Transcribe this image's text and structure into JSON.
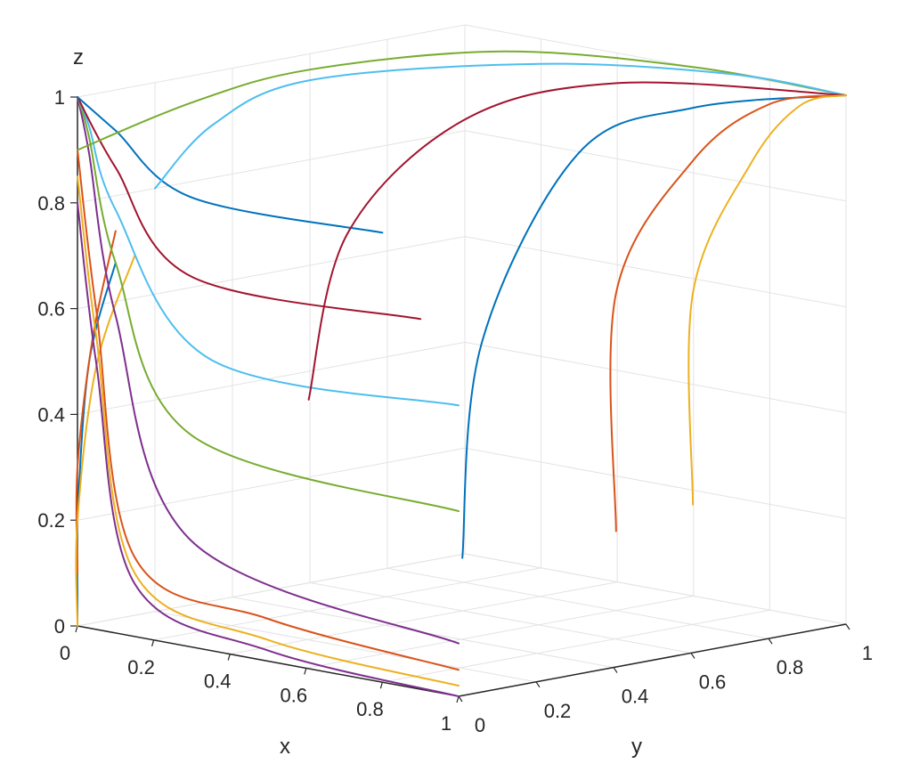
{
  "chart_data": {
    "type": "line",
    "title": "",
    "xlabel": "x",
    "ylabel": "y",
    "zlabel": "z",
    "xlim": [
      0,
      1
    ],
    "ylim": [
      0,
      1
    ],
    "zlim": [
      0,
      1
    ],
    "x_ticks": [
      "0",
      "0.2",
      "0.4",
      "0.6",
      "0.8",
      "1"
    ],
    "y_ticks": [
      "0",
      "0.2",
      "0.4",
      "0.6",
      "0.8",
      "1"
    ],
    "z_ticks": [
      "0",
      "0.2",
      "0.4",
      "0.6",
      "0.8",
      "1"
    ],
    "grid": true,
    "view": "3d-box",
    "color_order": [
      "#0072BD",
      "#D95319",
      "#EDB120",
      "#7E2F8E",
      "#77AC30",
      "#4DBEEE",
      "#A2142F"
    ],
    "series": [
      {
        "x": [
          0.1,
          0.03,
          0.0,
          0.0,
          0.0
        ],
        "y": [
          0.0,
          0.0,
          0.0,
          0.0,
          0.0
        ],
        "z": [
          0.7,
          0.5,
          0.2,
          0.05,
          0.0
        ]
      },
      {
        "x": [
          0.1,
          0.04,
          0.0,
          0.0
        ],
        "y": [
          0.0,
          0.0,
          0.0,
          0.0
        ],
        "z": [
          0.76,
          0.55,
          0.3,
          0.1
        ]
      },
      {
        "x": [
          0.15,
          0.05,
          0.0,
          0.0
        ],
        "y": [
          0.0,
          0.0,
          0.0,
          0.0
        ],
        "z": [
          0.72,
          0.5,
          0.2,
          0.0
        ]
      },
      {
        "x": [
          1.0,
          0.3,
          0.1,
          0.03,
          0.0
        ],
        "y": [
          0.0,
          0.0,
          0.0,
          0.0,
          0.0
        ],
        "z": [
          0.1,
          0.2,
          0.6,
          0.9,
          1.0
        ]
      },
      {
        "x": [
          1.0,
          0.3,
          0.1,
          0.03,
          0.0
        ],
        "y": [
          0.0,
          0.0,
          0.0,
          0.0,
          0.0
        ],
        "z": [
          0.35,
          0.4,
          0.7,
          0.93,
          1.0
        ]
      },
      {
        "x": [
          1.0,
          0.35,
          0.1,
          0.03,
          0.0
        ],
        "y": [
          0.0,
          0.0,
          0.0,
          0.0,
          0.0
        ],
        "z": [
          0.55,
          0.55,
          0.8,
          0.95,
          1.0
        ]
      },
      {
        "x": [
          0.9,
          0.3,
          0.1,
          0.0
        ],
        "y": [
          0.0,
          0.0,
          0.0,
          0.0
        ],
        "z": [
          0.7,
          0.7,
          0.88,
          1.0
        ]
      },
      {
        "x": [
          0.8,
          0.3,
          0.1,
          0.0
        ],
        "y": [
          0.0,
          0.0,
          0.0,
          0.0
        ],
        "z": [
          0.85,
          0.85,
          0.95,
          1.0
        ]
      },
      {
        "x": [
          1.0,
          0.5,
          0.15,
          0.05,
          0.0
        ],
        "y": [
          0.0,
          0.0,
          0.0,
          0.0,
          0.0
        ],
        "z": [
          0.05,
          0.08,
          0.15,
          0.6,
          0.9
        ]
      },
      {
        "x": [
          1.0,
          0.5,
          0.15,
          0.05,
          0.0
        ],
        "y": [
          0.0,
          0.0,
          0.0,
          0.0,
          0.0
        ],
        "z": [
          0.02,
          0.04,
          0.12,
          0.55,
          0.85
        ]
      },
      {
        "x": [
          1.0,
          0.5,
          0.15,
          0.05,
          0.0
        ],
        "y": [
          0.0,
          0.0,
          0.0,
          0.0,
          0.0
        ],
        "z": [
          0.0,
          0.02,
          0.1,
          0.5,
          0.8
        ]
      },
      {
        "x": [
          0.0,
          0.0,
          0.0,
          0.2,
          0.6,
          1.0
        ],
        "y": [
          0.0,
          0.3,
          0.6,
          0.9,
          1.0,
          1.0
        ],
        "z": [
          0.9,
          0.95,
          0.97,
          0.99,
          1.0,
          1.0
        ]
      },
      {
        "x": [
          0.0,
          0.0,
          0.0,
          0.3,
          0.7,
          1.0
        ],
        "y": [
          0.2,
          0.35,
          0.6,
          0.9,
          1.0,
          1.0
        ],
        "z": [
          0.8,
          0.9,
          0.95,
          0.98,
          1.0,
          1.0
        ]
      },
      {
        "x": [
          0.2,
          0.2,
          0.3,
          0.5,
          1.0
        ],
        "y": [
          0.4,
          0.5,
          0.7,
          0.9,
          1.0
        ],
        "z": [
          0.4,
          0.7,
          0.9,
          0.97,
          1.0
        ]
      },
      {
        "x": [
          0.4,
          0.4,
          0.5,
          0.7,
          1.0
        ],
        "y": [
          0.6,
          0.65,
          0.8,
          0.9,
          1.0
        ],
        "z": [
          0.1,
          0.5,
          0.85,
          0.95,
          1.0
        ]
      },
      {
        "x": [
          0.6,
          0.6,
          0.7,
          0.85,
          1.0
        ],
        "y": [
          0.8,
          0.8,
          0.9,
          0.95,
          1.0
        ],
        "z": [
          0.15,
          0.6,
          0.85,
          0.97,
          1.0
        ]
      },
      {
        "x": [
          0.7,
          0.7,
          0.8,
          0.9,
          1.0
        ],
        "y": [
          0.9,
          0.9,
          0.95,
          0.98,
          1.0
        ],
        "z": [
          0.2,
          0.6,
          0.85,
          0.97,
          1.0
        ]
      }
    ]
  }
}
